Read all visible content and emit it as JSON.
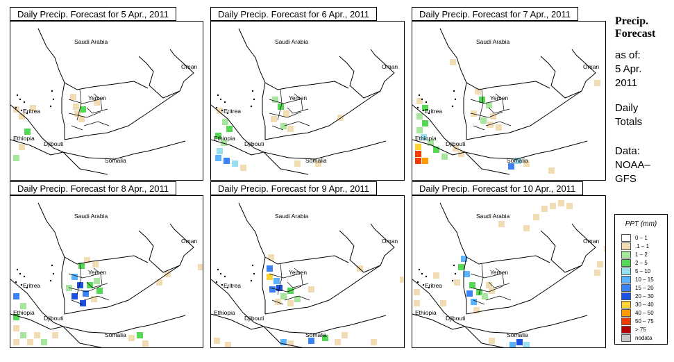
{
  "panels": [
    {
      "title": "Daily Precip. Forecast for  5 Apr., 2011"
    },
    {
      "title": "Daily Precip. Forecast for  6 Apr., 2011"
    },
    {
      "title": "Daily Precip. Forecast for  7 Apr., 2011"
    },
    {
      "title": "Daily Precip. Forecast for  8 Apr., 2011"
    },
    {
      "title": "Daily Precip. Forecast for  9 Apr., 2011"
    },
    {
      "title": "Daily Precip. Forecast for  10 Apr., 2011"
    }
  ],
  "map_labels": {
    "saudi_arabia": "Saudi Arabia",
    "oman": "Oman",
    "yemen": "Yemen",
    "eritrea": "Eritrea",
    "ethiopia": "Ethiopia",
    "djibouti": "Djibouti",
    "somalia": "Somalia"
  },
  "sidebar": {
    "title_line1": "Precip.",
    "title_line2": "Forecast",
    "asof_line1": "as of:",
    "asof_line2": "5 Apr.",
    "asof_line3": "2011",
    "totals_line1": "Daily",
    "totals_line2": "Totals",
    "data_line1": "Data:",
    "data_line2": "NOAA–",
    "data_line3": "GFS"
  },
  "legend": {
    "title": "PPT (mm)",
    "items": [
      {
        "label": "0 – 1",
        "color": "#ffffff"
      },
      {
        "label": ".1 – 1",
        "color": "#f2dcb4"
      },
      {
        "label": "1 – 2",
        "color": "#a8e6a0"
      },
      {
        "label": "2 – 5",
        "color": "#56d856"
      },
      {
        "label": "5 – 10",
        "color": "#96e0f0"
      },
      {
        "label": "10 – 15",
        "color": "#5ab4ff"
      },
      {
        "label": "15 – 20",
        "color": "#3a82f5"
      },
      {
        "label": "20 – 30",
        "color": "#1c50e0"
      },
      {
        "label": "30 – 40",
        "color": "#ffd236"
      },
      {
        "label": "40 – 50",
        "color": "#ff9a00"
      },
      {
        "label": "50 – 75",
        "color": "#f03c00"
      },
      {
        "label": "> 75",
        "color": "#b40000"
      },
      {
        "label": "nodata",
        "color": "#c8c8c8"
      }
    ]
  }
}
